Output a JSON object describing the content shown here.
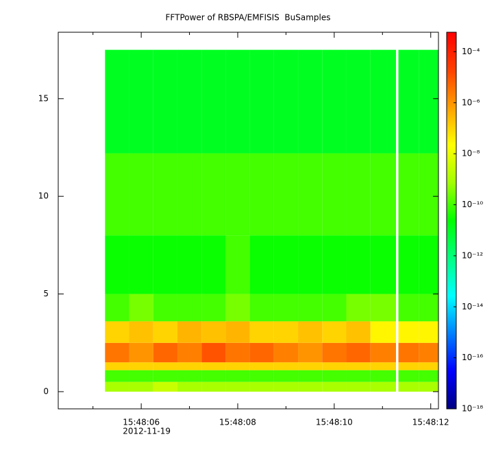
{
  "chart_data": {
    "type": "heatmap",
    "title": "FFTPower of RBSPA/EMFISIS  BuSamples",
    "x": [
      5.25,
      5.75,
      6.25,
      6.75,
      7.25,
      7.75,
      8.25,
      8.75,
      9.25,
      9.75,
      10.25,
      10.75,
      11.28,
      11.33,
      11.75,
      12.16
    ],
    "y": [
      0,
      0.5,
      1.1,
      1.5,
      2.5,
      3.6,
      5,
      8,
      12.2,
      17.5
    ],
    "values": [
      [
        1e-09,
        1e-09,
        3e-09,
        1e-09,
        1e-09,
        1e-09,
        1e-09,
        1e-09,
        1e-09,
        1e-09,
        1e-09,
        1e-09,
        null,
        1e-09,
        1e-09
      ],
      [
        1e-10,
        1e-10,
        1e-10,
        1e-10,
        1e-10,
        1e-10,
        1e-10,
        1e-10,
        1e-10,
        1e-10,
        1e-10,
        1e-10,
        null,
        1e-10,
        1e-10
      ],
      [
        1e-07,
        1e-07,
        1e-07,
        1e-07,
        1e-07,
        1e-07,
        1e-07,
        1e-07,
        1e-07,
        1e-07,
        1e-07,
        1e-07,
        null,
        1e-07,
        1e-07
      ],
      [
        3e-06,
        1e-06,
        5e-06,
        2e-06,
        1e-05,
        3e-06,
        5e-06,
        2e-06,
        1e-06,
        3e-06,
        5e-06,
        2e-06,
        null,
        3e-06,
        2e-06
      ],
      [
        1e-07,
        2e-07,
        1e-07,
        3e-07,
        2e-07,
        3e-07,
        1e-07,
        1e-07,
        2e-07,
        1e-07,
        2e-07,
        3e-08,
        null,
        3e-08,
        3e-08
      ],
      [
        1e-10,
        3e-10,
        1e-10,
        1e-10,
        1e-10,
        3e-10,
        1e-10,
        1e-10,
        1e-10,
        1e-10,
        3e-10,
        3e-10,
        null,
        1e-10,
        1e-10
      ],
      [
        3e-11,
        3e-11,
        3e-11,
        3e-11,
        3e-11,
        1e-10,
        3e-11,
        3e-11,
        3e-11,
        3e-11,
        3e-11,
        3e-11,
        null,
        3e-11,
        3e-11
      ],
      [
        1e-10,
        1e-10,
        1e-10,
        1e-10,
        1e-10,
        1e-10,
        1e-10,
        1e-10,
        1e-10,
        1e-10,
        1e-10,
        1e-10,
        null,
        1e-10,
        1e-10
      ],
      [
        1e-11,
        1e-11,
        1e-11,
        1e-11,
        1e-11,
        1e-11,
        1e-11,
        1e-11,
        1e-11,
        1e-11,
        1e-11,
        1e-11,
        null,
        1e-11,
        1e-11
      ]
    ],
    "xlim": [
      4.28,
      12.16
    ],
    "xticks": [
      {
        "value": 6,
        "label": "15:48:06"
      },
      {
        "value": 8,
        "label": "15:48:08"
      },
      {
        "value": 10,
        "label": "15:48:10"
      },
      {
        "value": 12,
        "label": "15:48:12"
      }
    ],
    "xminorticks": [
      5,
      7,
      9,
      11
    ],
    "x_date": "2012-11-19",
    "ylim": [
      -0.88,
      18.4
    ],
    "yticks": [
      0,
      5,
      10,
      15
    ],
    "zlim": [
      1e-18,
      0.00058
    ],
    "zlog": true,
    "zticks": [
      {
        "value": 0.0001,
        "label": "10⁻⁴"
      },
      {
        "value": 1e-06,
        "label": "10⁻⁶"
      },
      {
        "value": 1e-08,
        "label": "10⁻⁸"
      },
      {
        "value": 1e-10,
        "label": "10⁻¹⁰"
      },
      {
        "value": 1e-12,
        "label": "10⁻¹²"
      },
      {
        "value": 1e-14,
        "label": "10⁻¹⁴"
      },
      {
        "value": 1e-16,
        "label": "10⁻¹⁶"
      },
      {
        "value": 1e-18,
        "label": "10⁻¹⁸"
      }
    ],
    "colormap": [
      "#000080",
      "#0000ff",
      "#0080ff",
      "#00ffff",
      "#00ff80",
      "#00ff00",
      "#a0ff00",
      "#ffff00",
      "#ffa000",
      "#ff4000",
      "#ff0000"
    ]
  }
}
